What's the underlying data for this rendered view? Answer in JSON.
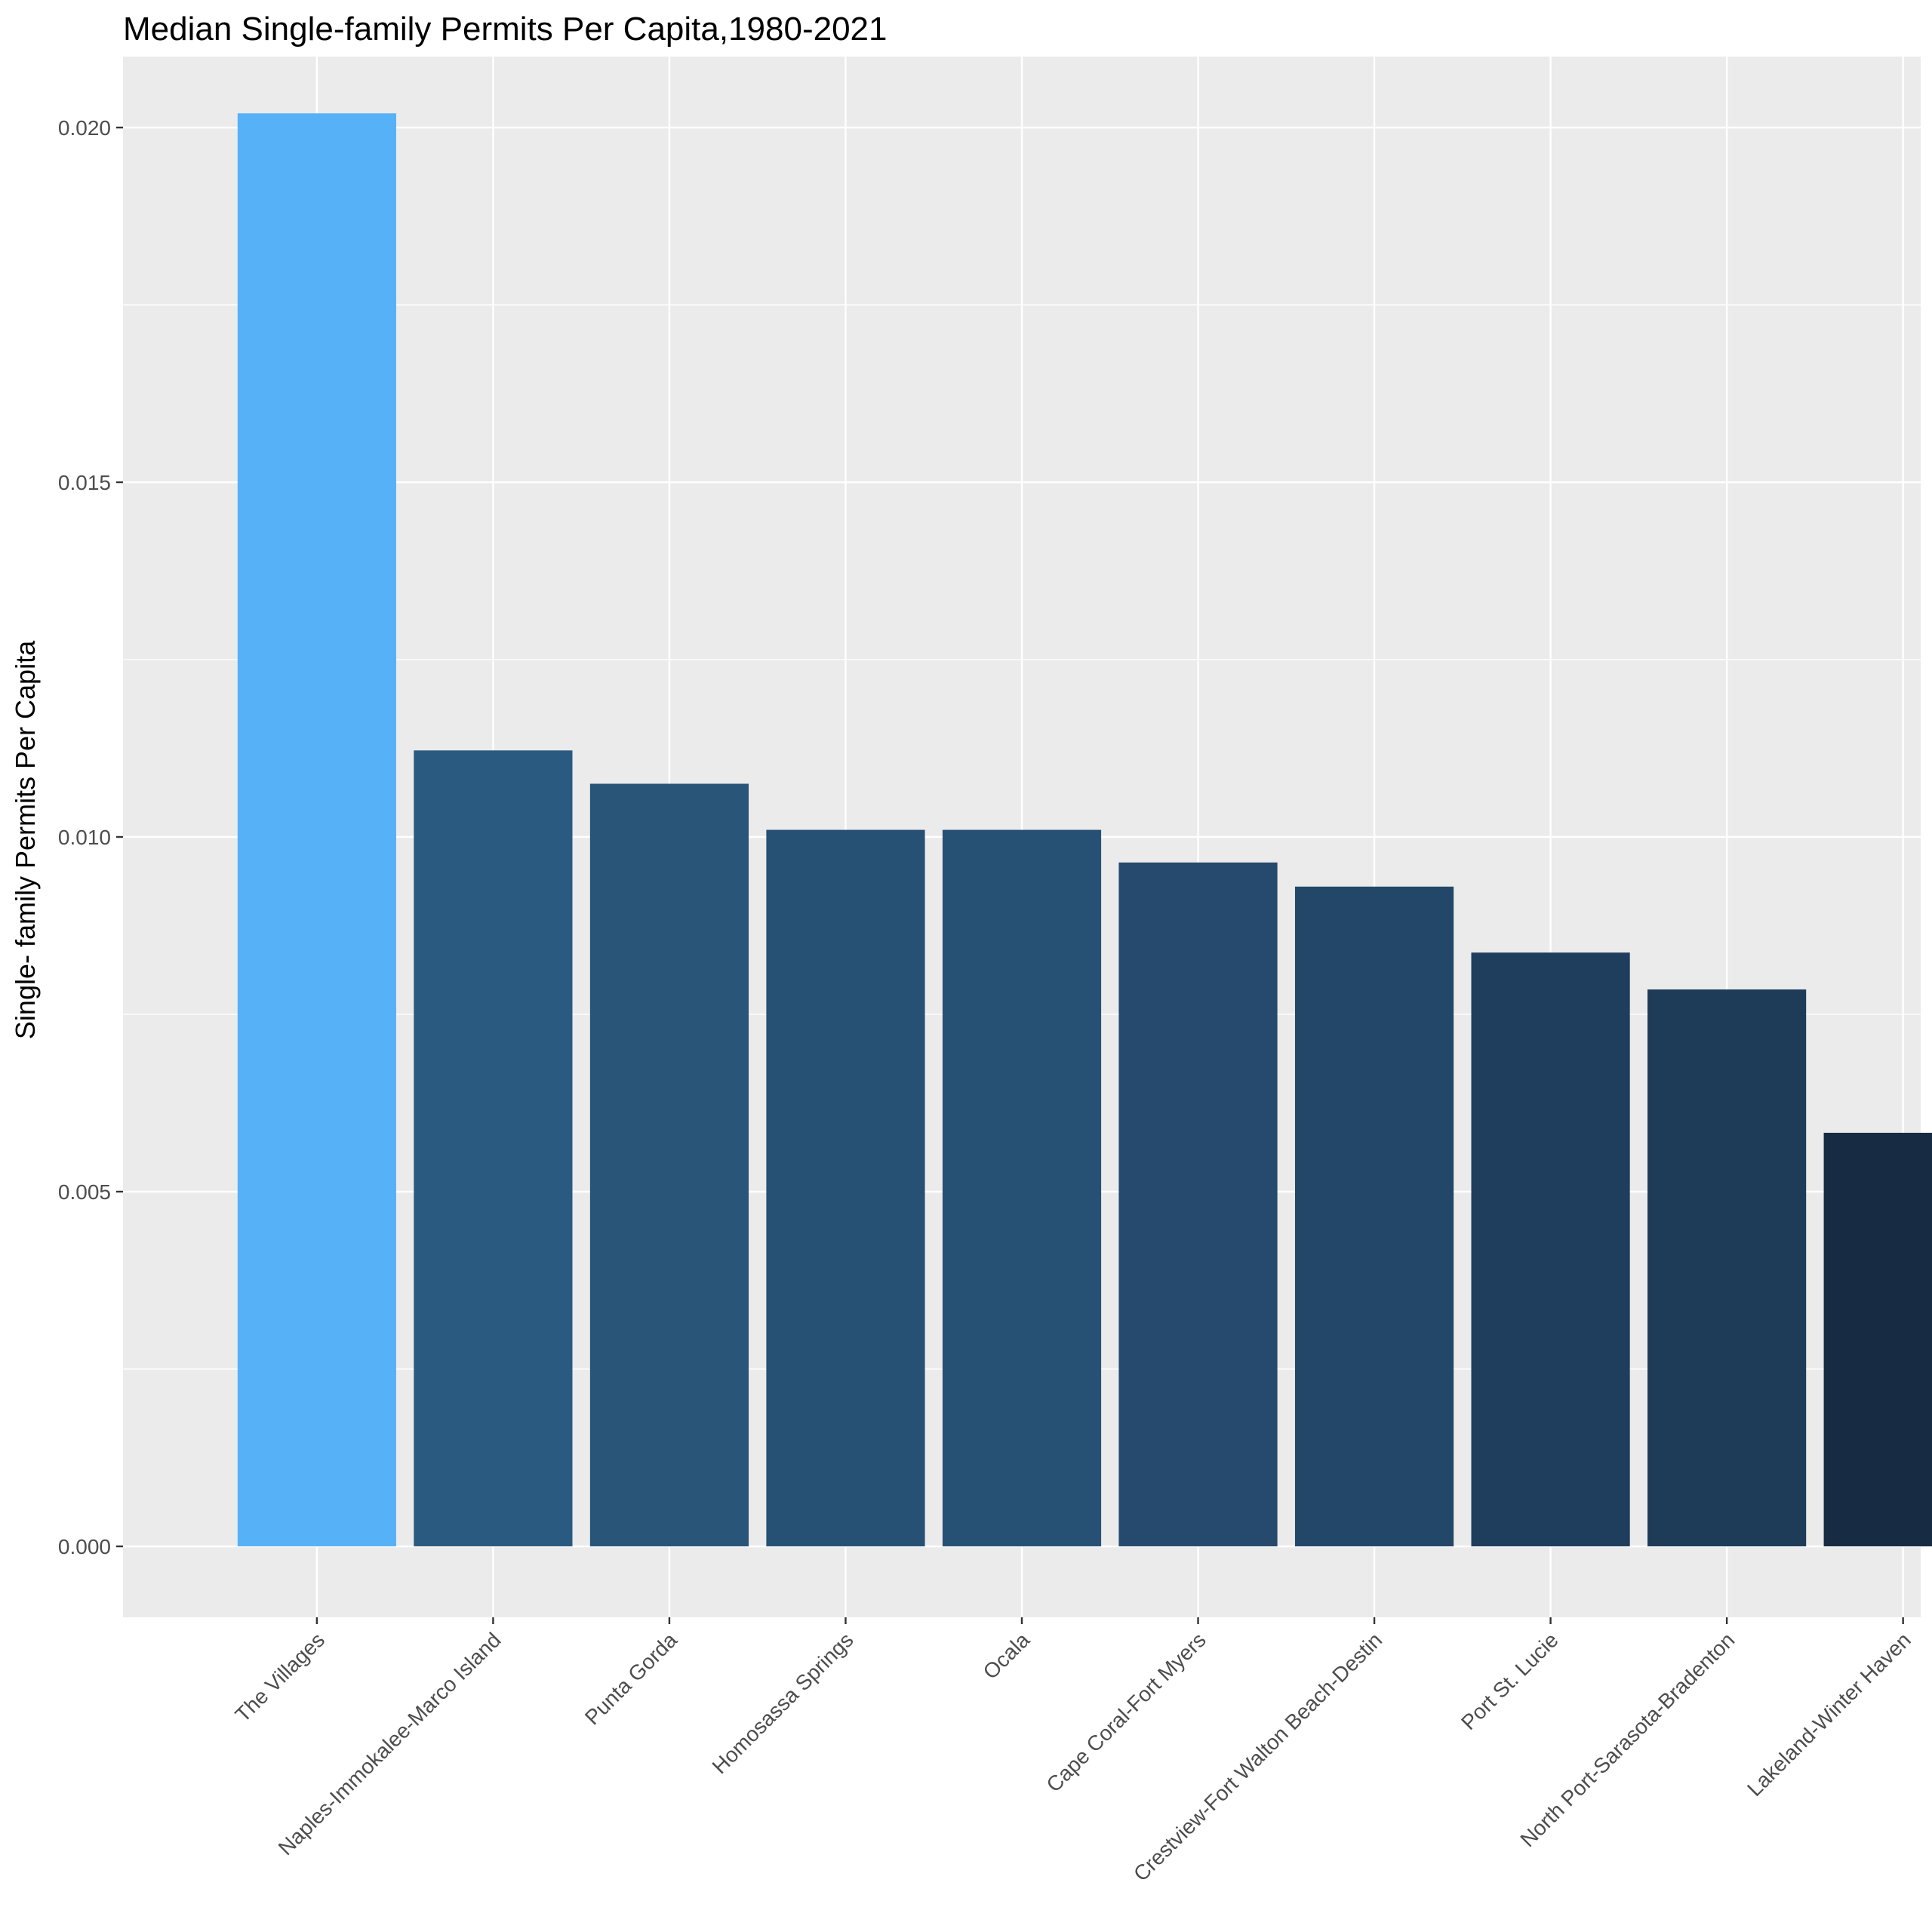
{
  "chart_data": {
    "type": "bar",
    "title": "Median Single-family Permits Per Capita,1980-2021",
    "xlabel": "",
    "ylabel": "Single- family Permits Per Capita",
    "ylim": [
      -0.001,
      0.021
    ],
    "yticks": [
      "0.000",
      "0.005",
      "0.010",
      "0.015",
      "0.020"
    ],
    "grid": true,
    "legend": "none",
    "categories": [
      "The Villages",
      "Naples-Immokalee-Marco Island",
      "Punta Gorda",
      "Homosassa Springs",
      "Ocala",
      "Cape Coral-Fort Myers",
      "Crestview-Fort Walton Beach-Destin",
      "Port St. Lucie",
      "North Port-Sarasota-Bradenton",
      "Lakeland-Winter Haven"
    ],
    "values": [
      0.0202,
      0.01122,
      0.01075,
      0.0101,
      0.0101,
      0.00964,
      0.0093,
      0.00837,
      0.00785,
      0.00583
    ],
    "colors": [
      "#56b1f7",
      "#2b5a80",
      "#295579",
      "#275075",
      "#275075",
      "#254a6d",
      "#234768",
      "#1f3d5c",
      "#1e3b58",
      "#172c43"
    ],
    "panel_color": "#ebebeb",
    "grid_color": "#ffffff"
  }
}
